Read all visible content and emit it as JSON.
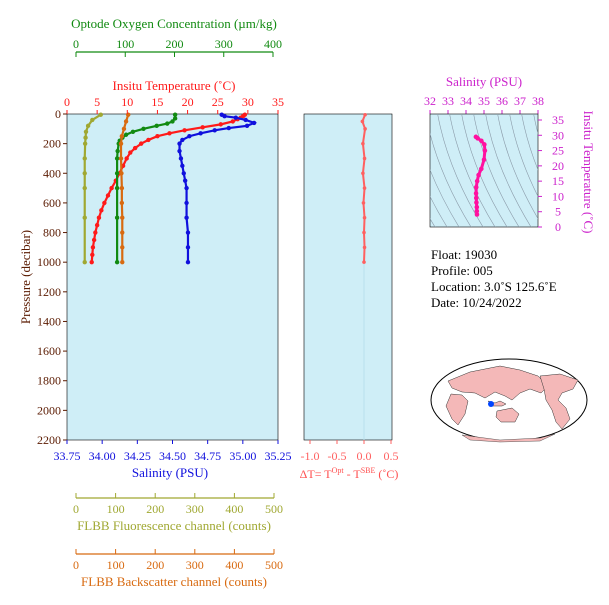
{
  "colors": {
    "plot_bg": "#cfeef7",
    "oxygen": "#118a11",
    "temperature": "#ff1a1a",
    "salinity": "#1010dd",
    "fluorescence": "#a0a832",
    "backscatter": "#d86a10",
    "delta_t": "#ff6060",
    "pressure": "#5a1a00",
    "ts_salinity": "#cc22cc",
    "ts_curve": "#ff10a0",
    "land": "#f4b8b8",
    "ocean": "#ffffff"
  },
  "axes": {
    "oxygen_title": "Optode Oxygen Concentration (µm/kg)",
    "oxygen_ticks": [
      "0",
      "100",
      "200",
      "300",
      "400"
    ],
    "temp_title": "Insitu Temperature (˚C)",
    "temp_ticks": [
      "0",
      "5",
      "10",
      "15",
      "20",
      "25",
      "30",
      "35"
    ],
    "pressure_title": "Pressure (decibar)",
    "pressure_ticks": [
      "0",
      "200",
      "400",
      "600",
      "800",
      "1000",
      "1200",
      "1400",
      "1600",
      "1800",
      "2000",
      "2200"
    ],
    "salinity_title": "Salinity (PSU)",
    "salinity_ticks": [
      "33.75",
      "34.00",
      "34.25",
      "34.50",
      "34.75",
      "35.00",
      "35.25"
    ],
    "fluor_title": "FLBB Fluorescence channel (counts)",
    "fluor_ticks": [
      "0",
      "100",
      "200",
      "300",
      "400",
      "500"
    ],
    "backscatter_title": "FLBB Backscatter channel (counts)",
    "backscatter_ticks": [
      "0",
      "100",
      "200",
      "300",
      "400",
      "500"
    ],
    "dt_title_prefix": "ΔT= T",
    "dt_sup1": "Opt",
    "dt_mid": " - T",
    "dt_sup2": "SBE",
    "dt_suffix": " (˚C)",
    "dt_ticks": [
      "-1.0",
      "-0.5",
      "0.0",
      "0.5"
    ],
    "ts_sal_title": "Salinity (PSU)",
    "ts_sal_ticks": [
      "32",
      "33",
      "34",
      "35",
      "36",
      "37",
      "38"
    ],
    "ts_temp_title": "Insitu Temperature (˚C)",
    "ts_temp_ticks": [
      "0",
      "5",
      "10",
      "15",
      "20",
      "25",
      "30",
      "35"
    ]
  },
  "info": {
    "float": "Float:  19030",
    "profile": "Profile:  005",
    "location": "Location:  3.0˚S  125.6˚E",
    "date": "Date:  10/24/2022"
  },
  "chart_data": {
    "type": "line",
    "y_axis": {
      "label": "Pressure (decibar)",
      "range": [
        2200,
        0
      ]
    },
    "series": [
      {
        "name": "Insitu Temperature",
        "unit": "˚C",
        "range": [
          0,
          35
        ],
        "points": [
          [
            29.5,
            5
          ],
          [
            29.2,
            15
          ],
          [
            28.8,
            25
          ],
          [
            28.3,
            35
          ],
          [
            27.5,
            50
          ],
          [
            25.5,
            70
          ],
          [
            22.5,
            90
          ],
          [
            19.5,
            110
          ],
          [
            17,
            130
          ],
          [
            15,
            150
          ],
          [
            13.5,
            175
          ],
          [
            12.3,
            200
          ],
          [
            11.3,
            230
          ],
          [
            10.5,
            260
          ],
          [
            9.9,
            300
          ],
          [
            9.3,
            350
          ],
          [
            8.7,
            400
          ],
          [
            8.1,
            450
          ],
          [
            7.4,
            500
          ],
          [
            6.8,
            550
          ],
          [
            6.2,
            600
          ],
          [
            5.7,
            650
          ],
          [
            5.3,
            700
          ],
          [
            5.0,
            750
          ],
          [
            4.7,
            800
          ],
          [
            4.5,
            850
          ],
          [
            4.3,
            900
          ],
          [
            4.2,
            950
          ],
          [
            4.1,
            1000
          ]
        ]
      },
      {
        "name": "Salinity",
        "unit": "PSU",
        "range": [
          33.75,
          35.25
        ],
        "points": [
          [
            34.85,
            5
          ],
          [
            34.87,
            15
          ],
          [
            34.95,
            25
          ],
          [
            35.02,
            40
          ],
          [
            35.08,
            60
          ],
          [
            35.03,
            80
          ],
          [
            34.9,
            95
          ],
          [
            34.8,
            110
          ],
          [
            34.7,
            130
          ],
          [
            34.62,
            150
          ],
          [
            34.57,
            175
          ],
          [
            34.55,
            200
          ],
          [
            34.55,
            250
          ],
          [
            34.56,
            300
          ],
          [
            34.57,
            350
          ],
          [
            34.58,
            400
          ],
          [
            34.59,
            450
          ],
          [
            34.6,
            500
          ],
          [
            34.6,
            600
          ],
          [
            34.6,
            700
          ],
          [
            34.61,
            800
          ],
          [
            34.61,
            900
          ],
          [
            34.61,
            1000
          ]
        ]
      },
      {
        "name": "Optode Oxygen Concentration",
        "unit": "µm/kg",
        "range": [
          0,
          400
        ],
        "points": [
          [
            205,
            5
          ],
          [
            205,
            30
          ],
          [
            200,
            50
          ],
          [
            190,
            65
          ],
          [
            170,
            80
          ],
          [
            145,
            100
          ],
          [
            125,
            120
          ],
          [
            112,
            140
          ],
          [
            105,
            160
          ],
          [
            100,
            180
          ],
          [
            98,
            200
          ],
          [
            96,
            250
          ],
          [
            95,
            300
          ],
          [
            95,
            400
          ],
          [
            95,
            500
          ],
          [
            95,
            700
          ],
          [
            95,
            1000
          ]
        ]
      },
      {
        "name": "FLBB Fluorescence channel",
        "unit": "counts",
        "range": [
          0,
          500
        ],
        "points": [
          [
            80,
            5
          ],
          [
            60,
            40
          ],
          [
            50,
            80
          ],
          [
            45,
            120
          ],
          [
            44,
            160
          ],
          [
            43,
            200
          ],
          [
            42,
            300
          ],
          [
            42,
            400
          ],
          [
            42,
            500
          ],
          [
            42,
            700
          ],
          [
            42,
            1000
          ]
        ]
      },
      {
        "name": "FLBB Backscatter channel",
        "unit": "counts",
        "range": [
          0,
          500
        ],
        "points": [
          [
            145,
            5
          ],
          [
            140,
            50
          ],
          [
            135,
            100
          ],
          [
            130,
            150
          ],
          [
            128,
            200
          ],
          [
            128,
            300
          ],
          [
            129,
            400
          ],
          [
            130,
            500
          ],
          [
            130,
            600
          ],
          [
            131,
            700
          ],
          [
            131,
            800
          ],
          [
            131,
            900
          ],
          [
            131,
            1000
          ]
        ]
      },
      {
        "name": "ΔT",
        "unit": "˚C",
        "range": [
          -1.0,
          0.5
        ],
        "points": [
          [
            0.02,
            5
          ],
          [
            -0.03,
            50
          ],
          [
            0.02,
            100
          ],
          [
            -0.02,
            200
          ],
          [
            0.01,
            300
          ],
          [
            -0.02,
            400
          ],
          [
            0.01,
            500
          ],
          [
            -0.01,
            600
          ],
          [
            0.01,
            700
          ],
          [
            0.0,
            800
          ],
          [
            0.01,
            900
          ],
          [
            0.0,
            1000
          ]
        ]
      }
    ],
    "ts_diagram": {
      "x_label": "Salinity (PSU)",
      "x_range": [
        32,
        38
      ],
      "y_label": "Insitu Temperature (˚C)",
      "y_range": [
        0,
        35
      ],
      "points": [
        [
          34.55,
          29.5
        ],
        [
          34.65,
          29
        ],
        [
          34.85,
          28.2
        ],
        [
          35.02,
          27
        ],
        [
          35.05,
          25
        ],
        [
          35.0,
          22
        ],
        [
          34.85,
          19
        ],
        [
          34.7,
          17
        ],
        [
          34.62,
          15
        ],
        [
          34.57,
          13
        ],
        [
          34.56,
          11
        ],
        [
          34.57,
          9.5
        ],
        [
          34.58,
          8
        ],
        [
          34.6,
          6.5
        ],
        [
          34.6,
          5.2
        ],
        [
          34.61,
          4.1
        ]
      ]
    }
  }
}
